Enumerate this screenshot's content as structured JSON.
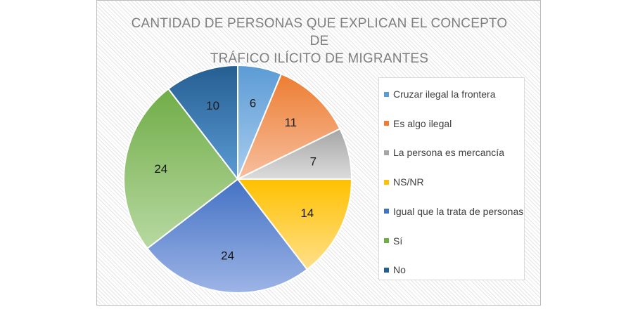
{
  "chart_data": {
    "type": "pie",
    "title_lines": [
      "CANTIDAD DE PERSONAS QUE EXPLICAN EL CONCEPTO DE",
      "TRÁFICO ILÍCITO DE MIGRANTES"
    ],
    "categories": [
      "Cruzar ilegal la frontera",
      "Es algo ilegal",
      "La persona es mercancía",
      "NS/NR",
      "Igual que la trata de personas",
      "Sí",
      "No"
    ],
    "values": [
      6,
      11,
      7,
      14,
      24,
      24,
      10
    ],
    "colors": [
      "#5b9bd5",
      "#ed7d31",
      "#a5a5a5",
      "#ffc000",
      "#4472c4",
      "#70ad47",
      "#255e91"
    ],
    "light_colors": [
      "#a9cdee",
      "#f7bf9f",
      "#dcdcdc",
      "#ffe08a",
      "#9db4e6",
      "#b8d9a2",
      "#5b9bd5"
    ],
    "legend_position": "right",
    "data_labels": true
  }
}
